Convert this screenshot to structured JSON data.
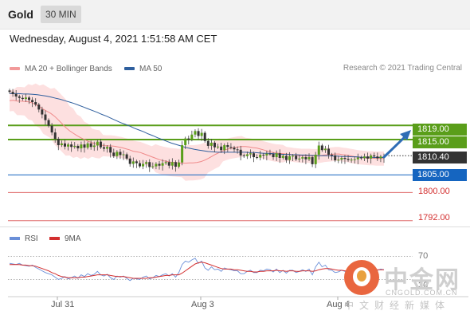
{
  "header": {
    "instrument": "Gold",
    "timeframe": "30 MIN",
    "datetime": "Wednesday, August 4, 2021 1:51:58 AM CET"
  },
  "legend": {
    "bollinger_label": "MA 20 + Bollinger Bands",
    "ma50_label": "MA 50",
    "credit": "Research © 2021 Trading Central",
    "colors": {
      "bollinger": "#f29a9a",
      "ma50": "#2f5f9e"
    }
  },
  "rsi_legend": {
    "rsi_label": "RSI",
    "ma_label": "9MA",
    "colors": {
      "rsi": "#6a8fd8",
      "ma": "#d32f2f"
    }
  },
  "chart_data": {
    "type": "candlestick",
    "price_range": [
      1789,
      1829
    ],
    "levels": [
      {
        "value": 1819.0,
        "label": "1819.00",
        "kind": "resistance",
        "color": "#5a9e1a"
      },
      {
        "value": 1815.0,
        "label": "1815.00",
        "kind": "resistance",
        "color": "#5a9e1a"
      },
      {
        "value": 1810.4,
        "label": "1810.40",
        "kind": "last",
        "color": "#333333"
      },
      {
        "value": 1805.0,
        "label": "1805.00",
        "kind": "pivot",
        "color": "#1565c0"
      },
      {
        "value": 1800.0,
        "label": "1800.00",
        "kind": "support",
        "color": "#d32f2f"
      },
      {
        "value": 1792.0,
        "label": "1792.00",
        "kind": "support",
        "color": "#d32f2f"
      }
    ],
    "closes": [
      1828.5,
      1827.9,
      1827.2,
      1826.8,
      1826.5,
      1826.9,
      1826.2,
      1825.6,
      1824.9,
      1823.5,
      1822.1,
      1820.5,
      1818.9,
      1817.0,
      1815.2,
      1813.4,
      1813.9,
      1813.0,
      1813.6,
      1812.9,
      1813.2,
      1812.5,
      1813.6,
      1812.7,
      1813.9,
      1812.9,
      1813.3,
      1814.4,
      1812.8,
      1812.4,
      1812.9,
      1811.3,
      1810.3,
      1811.5,
      1810.6,
      1810.8,
      1809.6,
      1808.1,
      1808.8,
      1808.3,
      1807.4,
      1808.1,
      1808.6,
      1807.2,
      1807.4,
      1808.1,
      1807.6,
      1808.3,
      1808.6,
      1807.6,
      1808.6,
      1807.3,
      1808.5,
      1813.4,
      1815.3,
      1815.0,
      1816.4,
      1817.4,
      1816.0,
      1816.9,
      1814.6,
      1813.2,
      1814.1,
      1812.8,
      1813.0,
      1812.0,
      1813.4,
      1812.9,
      1812.7,
      1812.2,
      1812.1,
      1810.5,
      1810.3,
      1810.8,
      1811.1,
      1810.0,
      1809.9,
      1810.7,
      1810.5,
      1811.0,
      1810.9,
      1810.0,
      1811.1,
      1809.8,
      1810.4,
      1809.2,
      1810.3,
      1810.4,
      1809.4,
      1809.6,
      1810.0,
      1809.4,
      1810.0,
      1808.0,
      1810.7,
      1813.3,
      1812.0,
      1812.4,
      1810.7,
      1810.5,
      1809.1,
      1809.3,
      1809.8,
      1809.5,
      1809.2,
      1809.3,
      1809.4,
      1809.9,
      1809.7,
      1810.2,
      1809.6,
      1810.5,
      1810.2,
      1809.7,
      1810.2,
      1809.8
    ],
    "ma20": [
      1826.0,
      1826.1,
      1825.9,
      1825.9,
      1825.8,
      1825.7,
      1825.4,
      1824.9,
      1824.3,
      1823.6,
      1823.0,
      1822.4,
      1821.6,
      1820.6,
      1819.5,
      1818.4,
      1817.5,
      1816.8,
      1816.1,
      1815.5,
      1815.0,
      1814.5,
      1814.1,
      1813.8,
      1813.6,
      1813.3,
      1813.2,
      1813.2,
      1813.1,
      1812.9,
      1812.7,
      1812.4,
      1812.1,
      1811.7,
      1811.5,
      1811.3,
      1810.9,
      1810.5,
      1810.1,
      1809.7,
      1809.3,
      1809.0,
      1808.8,
      1808.6,
      1808.5,
      1808.4,
      1808.3,
      1808.3,
      1808.4,
      1808.4,
      1808.5,
      1808.7,
      1809.1,
      1809.6,
      1810.2,
      1810.8,
      1811.3,
      1811.8,
      1812.2,
      1812.5,
      1812.7,
      1812.9,
      1813.0,
      1813.0,
      1812.9,
      1812.7,
      1812.6,
      1812.3,
      1812.0,
      1811.7,
      1811.4,
      1811.2,
      1811.1,
      1811.0,
      1810.9,
      1810.8,
      1810.6,
      1810.5,
      1810.4,
      1810.4,
      1810.4,
      1810.3,
      1810.3,
      1810.4,
      1810.6,
      1810.7,
      1810.8,
      1810.9,
      1810.9,
      1810.7,
      1810.6,
      1810.4,
      1810.2,
      1810.0,
      1809.9,
      1809.8,
      1809.7,
      1809.7,
      1809.6,
      1809.6,
      1809.6
    ],
    "ma50": [
      1828.0,
      1828.0,
      1828.0,
      1827.9,
      1827.9,
      1827.8,
      1827.7,
      1827.5,
      1827.3,
      1827.0,
      1826.7,
      1826.4,
      1826.0,
      1825.6,
      1825.2,
      1824.7,
      1824.2,
      1823.7,
      1823.2,
      1822.7,
      1822.1,
      1821.6,
      1821.0,
      1820.4,
      1819.8,
      1819.3,
      1818.8,
      1818.2,
      1817.7,
      1817.2,
      1816.6,
      1816.1,
      1815.5,
      1815.0,
      1814.5,
      1814.0,
      1813.6,
      1813.2,
      1812.8,
      1812.5,
      1812.2,
      1812.0,
      1811.8,
      1811.6,
      1811.5,
      1811.4,
      1811.4,
      1811.4,
      1811.4,
      1811.4,
      1811.4,
      1811.4,
      1811.3,
      1811.3,
      1811.2,
      1811.1,
      1811.1,
      1811.0,
      1810.9,
      1810.8,
      1810.8,
      1810.7,
      1810.7,
      1810.6,
      1810.6,
      1810.5,
      1810.5,
      1810.4,
      1810.4,
      1810.4,
      1810.3,
      1810.3,
      1810.2,
      1810.2,
      1810.1,
      1810.1,
      1810.0,
      1810.0,
      1810.0,
      1809.9,
      1809.9,
      1809.9
    ],
    "bollinger_width": [
      3,
      3,
      4,
      4,
      4,
      5,
      5,
      6,
      6,
      7,
      7,
      7,
      8,
      8,
      8,
      8,
      7,
      7,
      6,
      6,
      5,
      5,
      4,
      4,
      4,
      3,
      3,
      3,
      3,
      3,
      3,
      3,
      3,
      3,
      3,
      3,
      3,
      3,
      3,
      4,
      4,
      4,
      4,
      4,
      4,
      4,
      4,
      5,
      5,
      5,
      5,
      5,
      5,
      4,
      4,
      4,
      4,
      3,
      3,
      3,
      3,
      3,
      3,
      2.5,
      2.5,
      2.5,
      2.5,
      2.5,
      2.5,
      2.5,
      2.5,
      2.5,
      2.5,
      2.5,
      2,
      2,
      2,
      2,
      2,
      2,
      2,
      2,
      2,
      2,
      2,
      2,
      2,
      2,
      2,
      2,
      2,
      2,
      2,
      2,
      2,
      2,
      2,
      2,
      2,
      2
    ],
    "rsi_levels": [
      "70",
      "30"
    ],
    "rsi": [
      58,
      57,
      56,
      58,
      55,
      54,
      53,
      55,
      51,
      48,
      45,
      42,
      40,
      38,
      34,
      30,
      32,
      35,
      31,
      33,
      36,
      32,
      38,
      35,
      40,
      37,
      39,
      44,
      38,
      36,
      39,
      33,
      30,
      36,
      34,
      36,
      32,
      28,
      32,
      31,
      30,
      34,
      36,
      31,
      33,
      37,
      35,
      38,
      40,
      36,
      40,
      34,
      42,
      56,
      62,
      60,
      64,
      67,
      58,
      62,
      50,
      46,
      52,
      47,
      48,
      44,
      50,
      48,
      47,
      45,
      45,
      40,
      40,
      44,
      46,
      42,
      42,
      46,
      45,
      48,
      47,
      43,
      48,
      42,
      46,
      41,
      46,
      46,
      42,
      44,
      47,
      44,
      48,
      38,
      52,
      60,
      52,
      55,
      47,
      46,
      42,
      43,
      46,
      44,
      43,
      44,
      44,
      47,
      46,
      48,
      45,
      49,
      48,
      46,
      48,
      47
    ],
    "rsi_ma": [
      56,
      56,
      56,
      56,
      55,
      55,
      54,
      54,
      53,
      51,
      49,
      47,
      45,
      42,
      40,
      37,
      35,
      34,
      33,
      33,
      33,
      33,
      34,
      34,
      35,
      36,
      37,
      38,
      38,
      38,
      38,
      37,
      36,
      35,
      35,
      35,
      34,
      33,
      32,
      32,
      32,
      32,
      32,
      33,
      33,
      34,
      35,
      36,
      37,
      37,
      38,
      38,
      38,
      41,
      45,
      49,
      53,
      57,
      59,
      60,
      59,
      57,
      55,
      53,
      51,
      49,
      48,
      48,
      48,
      47,
      47,
      46,
      45,
      44,
      44,
      43,
      43,
      44,
      44,
      45,
      45,
      45,
      46,
      45,
      45,
      44,
      45,
      45,
      44,
      44,
      45,
      45,
      45,
      44,
      45,
      47,
      48,
      49,
      49,
      48,
      47,
      46,
      46,
      45,
      45,
      44,
      44,
      45,
      45,
      46,
      46,
      46,
      47,
      47,
      47,
      47
    ],
    "x_tick_labels": [
      "Jul 31",
      "Aug 3",
      "Aug 4"
    ]
  },
  "watermark": {
    "title": "中金网",
    "url": "CNGOLD.COM.CN",
    "sub": "中文财经新媒体"
  }
}
